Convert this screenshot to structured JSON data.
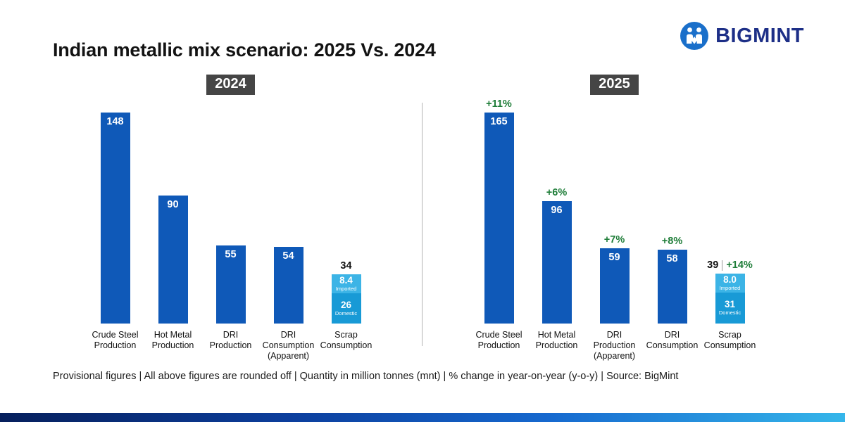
{
  "header": {
    "title": "Indian metallic mix scenario: 2025 Vs. 2024",
    "brand": "BIGMINT"
  },
  "footnote": "Provisional figures | All above figures are rounded off | Quantity in million tonnes (mnt) | % change in year-on-year (y-o-y) | Source: BigMint",
  "colors": {
    "bar_blue": "#0f59b8",
    "imported_blue": "#3cb4e6",
    "domestic_blue": "#189ad6",
    "pct_green": "#1e7d38",
    "badge_gray": "#454545",
    "logo_blue": "#1a6fca",
    "brand_navy": "#1d2f87",
    "bottom_gradient": [
      "#061f5c",
      "#0c3f9e",
      "#1669cf",
      "#35b6ea"
    ]
  },
  "chart_data": [
    {
      "type": "bar",
      "panel_label": "2024",
      "unit": "mnt",
      "legend_position": "none",
      "grid": false,
      "categories": [
        "Crude Steel Production",
        "Hot Metal Production",
        "DRI Production",
        "DRI Consumption (Apparent)",
        "Scrap Consumption"
      ],
      "values": [
        148,
        90,
        55,
        54,
        34
      ],
      "value_labels": [
        "148",
        "90",
        "55",
        "54",
        "34"
      ],
      "pct_labels": null,
      "stack": {
        "total_label": "34",
        "values": [
          8.4,
          26
        ],
        "segments": [
          {
            "label": "8.4",
            "sublabel": "Imported",
            "color_key": "imported_blue"
          },
          {
            "label": "26",
            "sublabel": "Domestic",
            "color_key": "domestic_blue"
          }
        ]
      }
    },
    {
      "type": "bar",
      "panel_label": "2025",
      "unit": "mnt",
      "legend_position": "none",
      "grid": false,
      "categories": [
        "Crude Steel Production",
        "Hot Metal Production",
        "DRI Production (Apparent)",
        "DRI Consumption",
        "Scrap Consumption"
      ],
      "values": [
        165,
        96,
        59,
        58,
        39
      ],
      "value_labels": [
        "165",
        "96",
        "59",
        "58",
        "39"
      ],
      "pct_labels": [
        "+11%",
        "+6%",
        "+7%",
        "+8%",
        "+14%"
      ],
      "stack": {
        "total_label": "39",
        "values": [
          8.0,
          31
        ],
        "segments": [
          {
            "label": "8.0",
            "sublabel": "Imported",
            "color_key": "imported_blue"
          },
          {
            "label": "31",
            "sublabel": "Domestic",
            "color_key": "domestic_blue"
          }
        ]
      }
    }
  ]
}
